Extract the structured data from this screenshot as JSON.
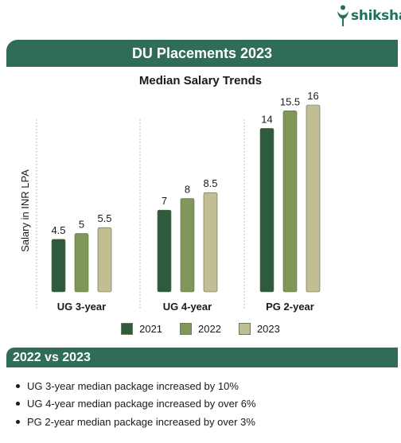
{
  "brand": {
    "name": "shiksha"
  },
  "header": {
    "title": "DU Placements 2023"
  },
  "chart_data": {
    "type": "bar",
    "title": "Median Salary Trends",
    "ylabel": "Salary in INR LPA",
    "xlabel": "",
    "categories": [
      "UG 3-year",
      "UG 4-year",
      "PG 2-year"
    ],
    "series": [
      {
        "name": "2021",
        "color": "#2e5b3e",
        "values": [
          4.5,
          7,
          14
        ]
      },
      {
        "name": "2022",
        "color": "#819659",
        "values": [
          5,
          8,
          15.5
        ]
      },
      {
        "name": "2023",
        "color": "#c2be94",
        "values": [
          5.5,
          8.5,
          16
        ]
      }
    ],
    "ylim": [
      0,
      16
    ],
    "grid": false,
    "legend_position": "bottom",
    "value_labels": true
  },
  "comparison": {
    "title": "2022 vs 2023",
    "points": [
      "UG 3-year median package increased by 10%",
      "UG 4-year median package increased by over 6%",
      "PG 2-year median package increased by over 3%"
    ]
  }
}
